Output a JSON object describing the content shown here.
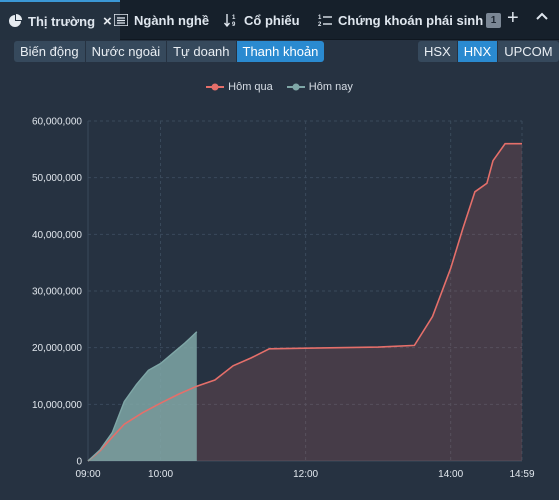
{
  "tabs": [
    {
      "label": "Thị trường",
      "icon": "pie-chart-icon",
      "active": true
    },
    {
      "label": "Ngành nghề",
      "icon": "list-icon"
    },
    {
      "label": "Cổ phiếu",
      "icon": "sort-icon"
    },
    {
      "label": "Chứng khoán phái sinh",
      "icon": "numbered-list-icon"
    }
  ],
  "tab_count": "1",
  "views": [
    "Biến động",
    "Nước ngoài",
    "Tự doanh",
    "Thanh khoản"
  ],
  "active_view": "Thanh khoản",
  "exchanges": [
    "HSX",
    "HNX",
    "UPCOM"
  ],
  "active_exchange": "HNX",
  "colors": {
    "yesterday": "#e56f6a",
    "today": "#7fa7a7",
    "accent": "#2a8ad0"
  },
  "chart_data": {
    "type": "area",
    "legend_position": "top-center",
    "grid": true,
    "ylim": [
      0,
      60000000
    ],
    "yticks": [
      "0",
      "10,000,000",
      "20,000,000",
      "30,000,000",
      "40,000,000",
      "50,000,000",
      "60,000,000"
    ],
    "xticks": [
      "09:00",
      "10:00",
      "12:00",
      "14:00",
      "14:59"
    ],
    "series": [
      {
        "name": "Hôm qua",
        "points": [
          [
            "09:00",
            0
          ],
          [
            "09:10",
            1800000
          ],
          [
            "09:20",
            4200000
          ],
          [
            "09:30",
            6500000
          ],
          [
            "09:45",
            8500000
          ],
          [
            "10:00",
            10200000
          ],
          [
            "10:15",
            11800000
          ],
          [
            "10:30",
            13200000
          ],
          [
            "10:45",
            14300000
          ],
          [
            "11:00",
            16800000
          ],
          [
            "11:15",
            18200000
          ],
          [
            "11:30",
            19800000
          ],
          [
            "12:00",
            19900000
          ],
          [
            "13:00",
            20100000
          ],
          [
            "13:30",
            20400000
          ],
          [
            "13:45",
            25500000
          ],
          [
            "14:00",
            34000000
          ],
          [
            "14:10",
            41000000
          ],
          [
            "14:20",
            47500000
          ],
          [
            "14:30",
            49000000
          ],
          [
            "14:35",
            53000000
          ],
          [
            "14:45",
            56000000
          ],
          [
            "14:59",
            56000000
          ]
        ]
      },
      {
        "name": "Hôm nay",
        "points": [
          [
            "09:00",
            0
          ],
          [
            "09:10",
            2000000
          ],
          [
            "09:20",
            5000000
          ],
          [
            "09:30",
            10500000
          ],
          [
            "09:40",
            13500000
          ],
          [
            "09:50",
            16000000
          ],
          [
            "10:00",
            17200000
          ],
          [
            "10:10",
            19000000
          ],
          [
            "10:20",
            20800000
          ],
          [
            "10:25",
            21800000
          ],
          [
            "10:30",
            22800000
          ],
          [
            "10:30",
            0
          ]
        ]
      }
    ]
  }
}
